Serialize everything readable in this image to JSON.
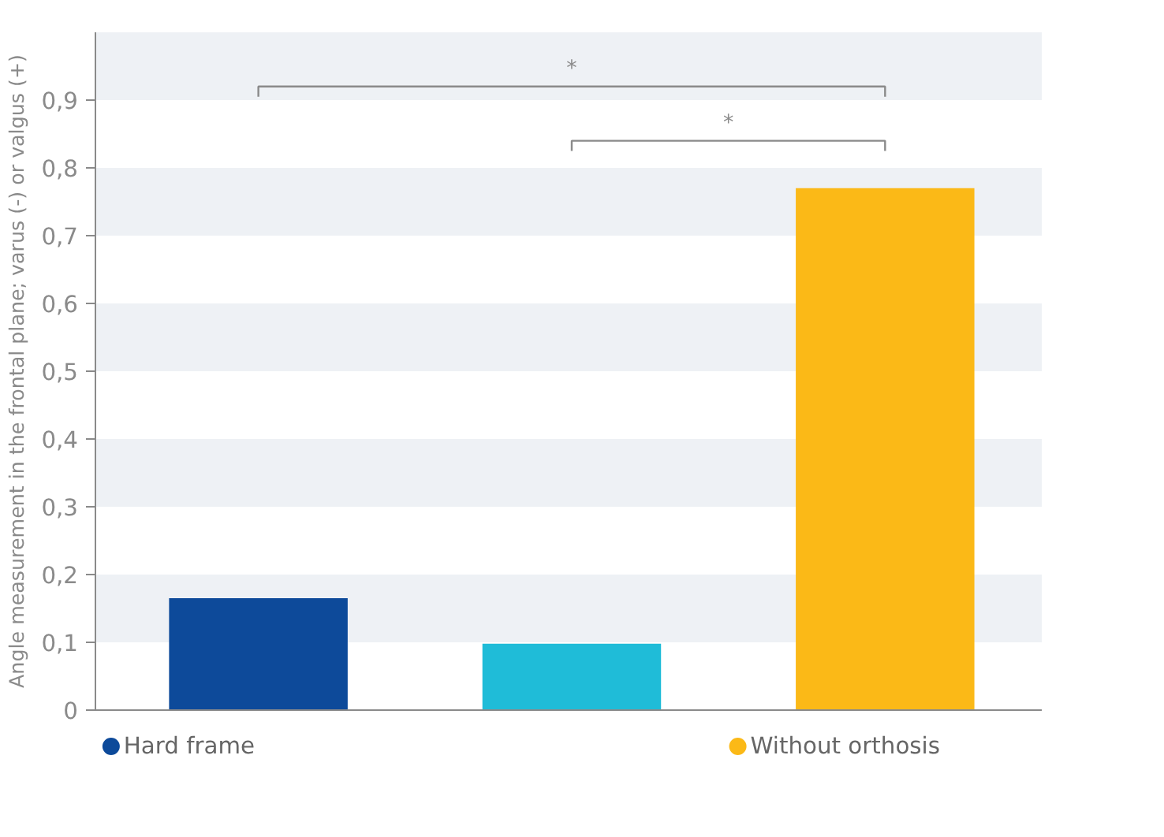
{
  "chart_data": {
    "type": "bar",
    "ylabel": "Angle measurement in the frontal plane; varus (-) or valgus (+)",
    "categories": [
      null,
      null,
      null
    ],
    "series": [
      {
        "name": "Hard frame",
        "color": "#0d4a9a",
        "values": [
          0.165,
          null,
          null
        ]
      },
      {
        "color": "#1fbcd8",
        "values": [
          null,
          0.098,
          null
        ]
      },
      {
        "name": "Without orthosis",
        "color": "#fbb917",
        "values": [
          null,
          null,
          0.77
        ]
      }
    ],
    "ylim": [
      0,
      1
    ],
    "yticks": [
      0,
      {
        "value": 0.1,
        "label": "0,1"
      },
      {
        "value": 0.2,
        "label": "0,2"
      },
      {
        "value": 0.3,
        "label": "0,3"
      },
      {
        "value": 0.4,
        "label": "0,4"
      },
      {
        "value": 0.5,
        "label": "0,5"
      },
      {
        "value": 0.6,
        "label": "0,6"
      },
      {
        "value": 0.7,
        "label": "0,7"
      },
      {
        "value": 0.8,
        "label": "0,8"
      },
      {
        "value": 0.9,
        "label": "0,9"
      }
    ],
    "bands": [
      {
        "axis": "y",
        "from": 0.1,
        "to": 0.2,
        "color": "#eef1f5"
      },
      {
        "axis": "y",
        "from": 0.3,
        "to": 0.4,
        "color": "#eef1f5"
      },
      {
        "axis": "y",
        "from": 0.5,
        "to": 0.6,
        "color": "#eef1f5"
      },
      {
        "axis": "y",
        "from": 0.7,
        "to": 0.8,
        "color": "#eef1f5"
      },
      {
        "axis": "y",
        "from": 0.9,
        "to": 1.0,
        "color": "#eef1f5"
      }
    ],
    "annotations": [
      "*",
      "*"
    ],
    "tick_labels": "y",
    "grid": false,
    "legend": "bottom"
  }
}
